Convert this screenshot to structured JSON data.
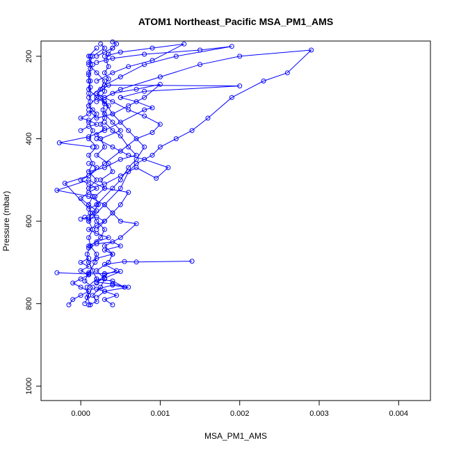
{
  "chart_data": {
    "type": "line",
    "title": "ATOM1 Northeast_Pacific MSA_PM1_AMS",
    "xlabel": "MSA_PM1_AMS",
    "ylabel": "Pressure (mbar)",
    "xlim": [
      -0.0005,
      0.0044
    ],
    "ylim": [
      1035,
      163
    ],
    "y_inverted": true,
    "grid": false,
    "legend": "none",
    "marker": "open-circle",
    "color": "#0000ff",
    "xticks": [
      {
        "v": 0,
        "label": "0.000"
      },
      {
        "v": 0.001,
        "label": "0.001"
      },
      {
        "v": 0.002,
        "label": "0.002"
      },
      {
        "v": 0.003,
        "label": "0.003"
      },
      {
        "v": 0.004,
        "label": "0.004"
      }
    ],
    "yticks": [
      {
        "v": 200,
        "label": "200"
      },
      {
        "v": 400,
        "label": "400"
      },
      {
        "v": 600,
        "label": "600"
      },
      {
        "v": 800,
        "label": "800"
      },
      {
        "v": 1000,
        "label": "1000"
      }
    ],
    "series": [
      {
        "points": [
          [
            0.00012,
            803
          ],
          [
            8e-05,
            785
          ],
          [
            0.00015,
            760
          ],
          [
            5e-05,
            745
          ],
          [
            0.0001,
            725
          ],
          [
            0.00018,
            700
          ],
          [
            0.0002,
            680
          ],
          [
            0.00012,
            660
          ],
          [
            0.00025,
            640
          ],
          [
            0.0003,
            620
          ],
          [
            0.0002,
            600
          ],
          [
            0.00015,
            580
          ],
          [
            0.00022,
            560
          ],
          [
            0.00018,
            540
          ],
          [
            0.0003,
            520
          ],
          [
            0.00025,
            500
          ],
          [
            0.0004,
            480
          ],
          [
            0.00035,
            460
          ],
          [
            0.0002,
            440
          ],
          [
            0.0003,
            420
          ],
          [
            0.00025,
            400
          ],
          [
            0.0005,
            380
          ],
          [
            0.0004,
            360
          ],
          [
            0.0003,
            340
          ],
          [
            0.00035,
            320
          ],
          [
            0.0002,
            300
          ],
          [
            0.00025,
            280
          ],
          [
            0.0003,
            260
          ],
          [
            0.0002,
            240
          ],
          [
            0.0001,
            220
          ],
          [
            0.00015,
            200
          ],
          [
            0.0003,
            180
          ],
          [
            0.00025,
            170
          ]
        ]
      },
      {
        "points": [
          [
            5e-05,
            800
          ],
          [
            0.0001,
            780
          ],
          [
            8e-05,
            760
          ],
          [
            0.0002,
            740
          ],
          [
            0.00015,
            720
          ],
          [
            0.0001,
            700
          ],
          [
            8e-05,
            680
          ],
          [
            0.00012,
            660
          ],
          [
            0.0001,
            640
          ],
          [
            0.00015,
            620
          ],
          [
            0.0001,
            600
          ],
          [
            0.00012,
            580
          ],
          [
            0.0001,
            560
          ],
          [
            0.00015,
            540
          ],
          [
            0.0001,
            520
          ],
          [
            0.0002,
            500
          ],
          [
            0.0001,
            480
          ],
          [
            0.00015,
            460
          ],
          [
            0.0001,
            440
          ],
          [
            0.0002,
            420
          ],
          [
            0.0001,
            400
          ],
          [
            0.00015,
            380
          ],
          [
            0.0001,
            360
          ],
          [
            0.0002,
            340
          ],
          [
            0.0001,
            320
          ],
          [
            0.0002,
            300
          ],
          [
            0.0001,
            280
          ],
          [
            0.00012,
            260
          ],
          [
            0.0001,
            240
          ],
          [
            0.00015,
            220
          ],
          [
            0.0001,
            200
          ],
          [
            0.0002,
            180
          ]
        ]
      },
      {
        "points": [
          [
            0.0002,
            750
          ],
          [
            0.0003,
            730
          ],
          [
            0.00045,
            720
          ],
          [
            0.0003,
            705
          ],
          [
            0.00055,
            698
          ],
          [
            0.0007,
            699
          ],
          [
            0.0014,
            697
          ]
        ]
      },
      {
        "points": [
          [
            -0.0003,
            725
          ],
          [
            0.0001,
            728
          ],
          [
            0.0003,
            727
          ],
          [
            0.0005,
            722
          ],
          [
            0.0003,
            738
          ],
          [
            0.0002,
            748
          ],
          [
            0.0004,
            752
          ],
          [
            0.0006,
            760
          ],
          [
            0.0003,
            770
          ],
          [
            0.0002,
            785
          ]
        ]
      },
      {
        "points": [
          [
            0.0001,
            803
          ],
          [
            0.0002,
            795
          ],
          [
            0.00015,
            780
          ],
          [
            0.00025,
            760
          ],
          [
            0.0003,
            740
          ],
          [
            0.0002,
            720
          ],
          [
            0.00035,
            700
          ],
          [
            0.0004,
            680
          ],
          [
            0.0003,
            660
          ],
          [
            0.0005,
            640
          ],
          [
            0.0007,
            606
          ],
          [
            0.0005,
            600
          ],
          [
            0.0004,
            580
          ],
          [
            0.0005,
            560
          ],
          [
            0.0006,
            530
          ],
          [
            0.0003,
            520
          ],
          [
            0.0001,
            500
          ],
          [
            -0.0003,
            525
          ],
          [
            0.0001,
            540
          ],
          [
            0.0003,
            560
          ],
          [
            0.0004,
            580
          ],
          [
            0.0003,
            600
          ],
          [
            0.0002,
            620
          ]
        ]
      },
      {
        "points": [
          [
            0.0001,
            520
          ],
          [
            0.0003,
            510
          ],
          [
            0.0005,
            490
          ],
          [
            0.0007,
            470
          ],
          [
            0.00095,
            496
          ],
          [
            0.0011,
            470
          ],
          [
            0.0008,
            450
          ],
          [
            0.0006,
            440
          ],
          [
            0.0004,
            420
          ],
          [
            0.0002,
            400
          ]
        ]
      },
      {
        "points": [
          [
            0.0002,
            560
          ],
          [
            0.0001,
            570
          ],
          [
            -0.0002,
            508
          ],
          [
            0.0001,
            490
          ],
          [
            0.0003,
            460
          ],
          [
            0.0005,
            430
          ],
          [
            0.0007,
            400
          ],
          [
            0.0009,
            385
          ],
          [
            0.001,
            365
          ],
          [
            0.0008,
            345
          ],
          [
            0.0006,
            330
          ],
          [
            0.0004,
            310
          ],
          [
            0.0002,
            290
          ]
        ]
      },
      {
        "points": [
          [
            0.0001,
            480
          ],
          [
            0.0003,
            470
          ],
          [
            0.0005,
            450
          ],
          [
            0.0007,
            440
          ],
          [
            0.0006,
            420
          ],
          [
            0.0005,
            393
          ],
          [
            0.0004,
            380
          ],
          [
            0.0003,
            360
          ]
        ]
      },
      {
        "points": [
          [
            0.00015,
            420
          ],
          [
            -0.00027,
            410
          ],
          [
            0.0001,
            395
          ],
          [
            0.0003,
            380
          ],
          [
            0.0005,
            360
          ],
          [
            0.0008,
            330
          ],
          [
            0.0009,
            325
          ],
          [
            0.0007,
            310
          ],
          [
            0.0005,
            300
          ]
        ]
      },
      {
        "points": [
          [
            0.0002,
            560
          ],
          [
            0.0004,
            520
          ],
          [
            0.0005,
            500
          ],
          [
            0.0006,
            470
          ],
          [
            0.0007,
            450
          ],
          [
            0.0008,
            420
          ],
          [
            0.0006,
            380
          ],
          [
            0.0004,
            340
          ],
          [
            0.0003,
            310
          ],
          [
            0.0002,
            290
          ],
          [
            0.00035,
            270
          ],
          [
            0.002,
            272
          ],
          [
            0.0008,
            285
          ],
          [
            0.0005,
            300
          ]
        ]
      },
      {
        "points": [
          [
            0.0001,
            600
          ],
          [
            0.0003,
            560
          ],
          [
            0.0005,
            520
          ],
          [
            0.0006,
            480
          ],
          [
            0.0007,
            460
          ],
          [
            0.0009,
            440
          ],
          [
            0.001,
            420
          ],
          [
            0.0012,
            400
          ],
          [
            0.0014,
            380
          ],
          [
            0.0016,
            350
          ],
          [
            0.0019,
            300
          ],
          [
            0.0023,
            260
          ],
          [
            0.0026,
            240
          ],
          [
            0.0029,
            185
          ],
          [
            0.002,
            200
          ],
          [
            0.0015,
            220
          ],
          [
            0.001,
            250
          ],
          [
            0.0005,
            280
          ],
          [
            0.0003,
            300
          ]
        ]
      },
      {
        "points": [
          [
            0.0001,
            300
          ],
          [
            0.0003,
            270
          ],
          [
            0.0005,
            250
          ],
          [
            0.0008,
            220
          ],
          [
            0.0012,
            200
          ],
          [
            0.0019,
            176
          ],
          [
            0.0015,
            185
          ],
          [
            0.0008,
            195
          ],
          [
            0.0004,
            205
          ],
          [
            0.0002,
            215
          ]
        ]
      },
      {
        "points": [
          [
            0.0002,
            260
          ],
          [
            0.0004,
            240
          ],
          [
            0.0006,
            225
          ],
          [
            0.0009,
            210
          ],
          [
            0.0013,
            170
          ],
          [
            0.0009,
            180
          ],
          [
            0.0005,
            190
          ],
          [
            0.0003,
            200
          ]
        ]
      },
      {
        "points": [
          [
            0.0001,
            330
          ],
          [
            0.0002,
            350
          ],
          [
            0.0004,
            340
          ],
          [
            0.0006,
            320
          ],
          [
            0.0008,
            300
          ],
          [
            0.001,
            268
          ],
          [
            0.0007,
            280
          ],
          [
            0.0004,
            290
          ],
          [
            0.0002,
            310
          ]
        ]
      },
      {
        "points": [
          [
            0.0001,
            660
          ],
          [
            0.0002,
            650
          ],
          [
            0.00035,
            640
          ],
          [
            0.0002,
            630
          ],
          [
            0.0001,
            620
          ],
          [
            0.0002,
            610
          ],
          [
            0.0003,
            600
          ],
          [
            0.0002,
            590
          ],
          [
            0.0001,
            595
          ],
          [
            5e-05,
            590
          ]
        ]
      },
      {
        "points": [
          [
            0.0001,
            700
          ],
          [
            0.0002,
            690
          ],
          [
            0.0004,
            680
          ],
          [
            0.0003,
            670
          ],
          [
            0.0005,
            660
          ],
          [
            0.0004,
            650
          ],
          [
            0.0002,
            655
          ],
          [
            0.0001,
            665
          ]
        ]
      },
      {
        "points": [
          [
            0.0004,
            803
          ],
          [
            0.0003,
            790
          ],
          [
            0.00045,
            780
          ],
          [
            0.0003,
            770
          ],
          [
            0.0002,
            765
          ],
          [
            0.0004,
            755
          ],
          [
            0.00055,
            760
          ],
          [
            0.0004,
            745
          ],
          [
            0.0002,
            740
          ]
        ]
      },
      {
        "points": [
          [
            -0.00015,
            803
          ],
          [
            -0.0001,
            790
          ],
          [
            0.0,
            780
          ],
          [
            0.0001,
            770
          ],
          [
            0.0,
            760
          ],
          [
            -0.0001,
            750
          ],
          [
            0.0,
            740
          ],
          [
            0.0001,
            730
          ],
          [
            0.0,
            720
          ],
          [
            0.0001,
            710
          ],
          [
            0.0,
            700
          ],
          [
            0.0001,
            690
          ]
        ]
      },
      {
        "points": [
          [
            0.0,
            595
          ],
          [
            0.0001,
            590
          ],
          [
            0.0002,
            575
          ],
          [
            0.0001,
            560
          ],
          [
            0.0,
            545
          ],
          [
            0.0001,
            530
          ],
          [
            0.0002,
            520
          ],
          [
            0.0001,
            510
          ],
          [
            0.0,
            500
          ],
          [
            0.0001,
            490
          ],
          [
            0.0002,
            470
          ],
          [
            0.0001,
            460
          ]
        ]
      },
      {
        "points": [
          [
            0.0,
            380
          ],
          [
            0.0001,
            370
          ],
          [
            0.0002,
            365
          ],
          [
            0.0001,
            355
          ],
          [
            0.0,
            350
          ],
          [
            0.0001,
            340
          ],
          [
            0.00015,
            330
          ],
          [
            0.0001,
            320
          ],
          [
            0.00012,
            310
          ],
          [
            0.0001,
            290
          ],
          [
            0.00012,
            275
          ],
          [
            0.0001,
            260
          ],
          [
            0.0001,
            245
          ],
          [
            0.00012,
            230
          ],
          [
            0.0001,
            215
          ],
          [
            0.00012,
            200
          ]
        ]
      },
      {
        "points": [
          [
            0.0002,
            200
          ],
          [
            0.0003,
            190
          ],
          [
            0.0004,
            180
          ],
          [
            0.00045,
            170
          ],
          [
            0.0004,
            165
          ]
        ]
      },
      {
        "points": [
          [
            0.00025,
            400
          ],
          [
            0.0002,
            390
          ],
          [
            0.0003,
            375
          ],
          [
            0.00025,
            365
          ],
          [
            0.0003,
            350
          ],
          [
            0.00028,
            330
          ],
          [
            0.0003,
            315
          ],
          [
            0.00025,
            300
          ],
          [
            0.0003,
            285
          ],
          [
            0.0003,
            270
          ],
          [
            0.00035,
            255
          ],
          [
            0.0003,
            240
          ],
          [
            0.00035,
            225
          ],
          [
            0.00032,
            210
          ],
          [
            0.00035,
            195
          ],
          [
            0.0004,
            180
          ]
        ]
      }
    ]
  }
}
